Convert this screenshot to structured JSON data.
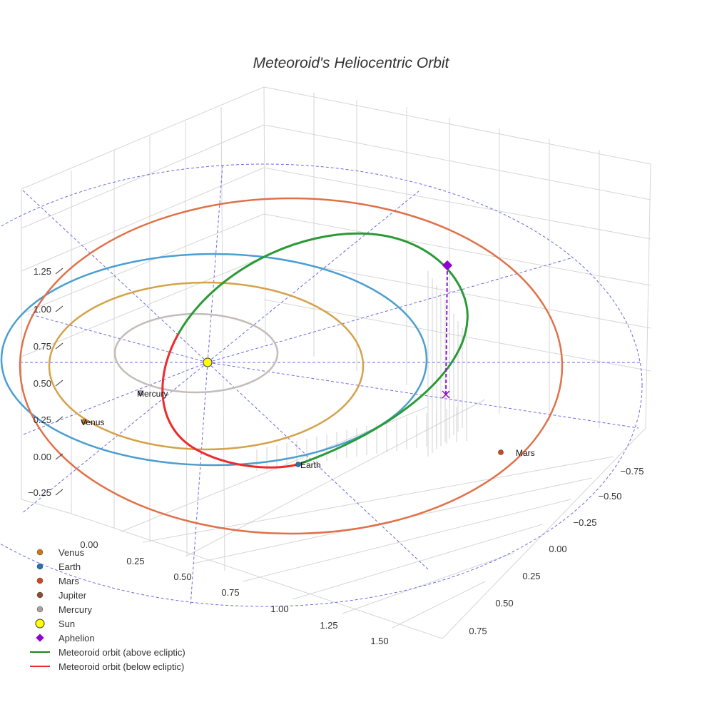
{
  "chart_data": {
    "type": "scatter3d",
    "title": "Meteoroid's Heliocentric Orbit",
    "z_ticks": [
      "1.25",
      "1.00",
      "0.75",
      "0.50",
      "0.25",
      "0.00",
      "−0.25"
    ],
    "x_ticks": [
      "0.00",
      "0.25",
      "0.50",
      "0.75",
      "1.00",
      "1.25",
      "1.50"
    ],
    "y_ticks": [
      "−0.75",
      "−0.50",
      "−0.25",
      "0.00",
      "0.25",
      "0.50",
      "0.75"
    ],
    "planets": [
      {
        "name": "Venus",
        "color": "#c87a12"
      },
      {
        "name": "Mercury",
        "color": "#aaa29c"
      },
      {
        "name": "Earth",
        "color": "#1f77b4"
      },
      {
        "name": "Mars",
        "color": "#d0471b"
      }
    ],
    "orbit_colors": {
      "mercury": "#c4bcb8",
      "venus": "#d4a24a",
      "earth": "#4a9ed0",
      "mars": "#e07048",
      "above": "#2a9a36",
      "below": "#ee2a2a",
      "aphelion": "#8a1ccc"
    },
    "legend": [
      {
        "label": "Venus",
        "symbol": "dot",
        "color": "#c87a12"
      },
      {
        "label": "Earth",
        "symbol": "dot",
        "color": "#1f77b4"
      },
      {
        "label": "Mars",
        "symbol": "dot",
        "color": "#d0471b"
      },
      {
        "label": "Jupiter",
        "symbol": "dot",
        "color": "#8c4e2e"
      },
      {
        "label": "Mercury",
        "symbol": "dot",
        "color": "#aaa29c"
      },
      {
        "label": "Sun",
        "symbol": "sun",
        "color": "#ffff00"
      },
      {
        "label": "Aphelion",
        "symbol": "diamond",
        "color": "#9400d3"
      },
      {
        "label": "Meteoroid orbit (above ecliptic)",
        "symbol": "line",
        "color": "#138a13"
      },
      {
        "label": "Meteoroid orbit (below ecliptic)",
        "symbol": "line",
        "color": "#ee2a2a"
      }
    ]
  }
}
